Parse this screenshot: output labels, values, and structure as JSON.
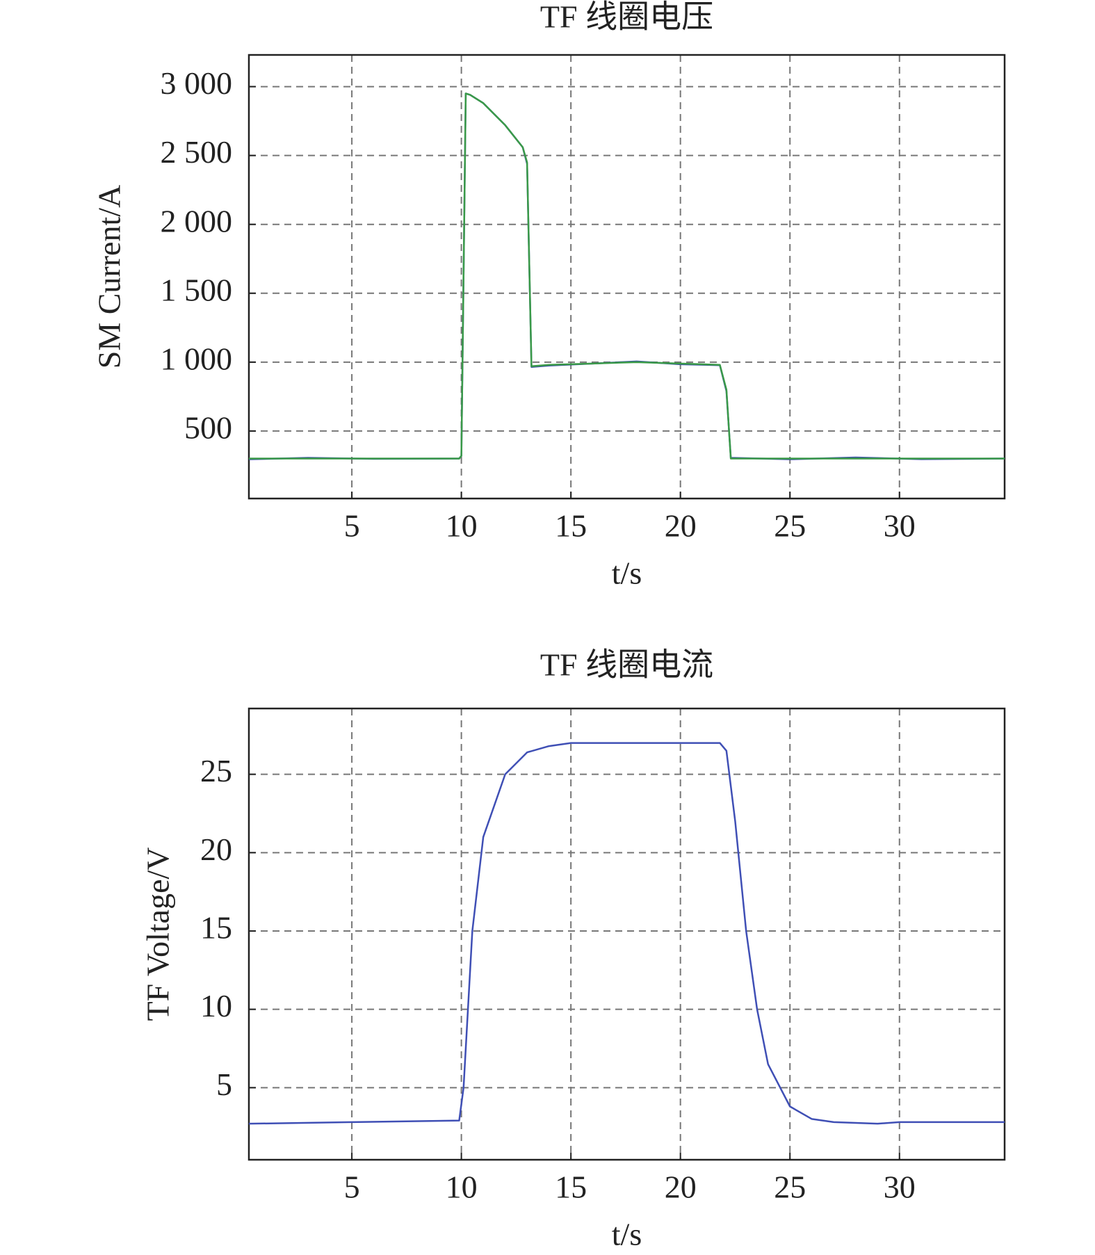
{
  "chart_data": [
    {
      "type": "line",
      "title": "TF 线圈电压",
      "xlabel": "t/s",
      "ylabel": "SM Current/A",
      "x": [
        0.3,
        3,
        6,
        9.9,
        10.0,
        10.2,
        10.4,
        11,
        12,
        12.8,
        13.0,
        13.2,
        14,
        16,
        18,
        20,
        21.8,
        22.1,
        22.3,
        25,
        28,
        31,
        34.8
      ],
      "series": [
        {
          "color": "#3b4fa8",
          "values": [
            295,
            305,
            298,
            300,
            320,
            2950,
            2940,
            2880,
            2720,
            2560,
            2440,
            965,
            975,
            990,
            1005,
            985,
            978,
            790,
            305,
            295,
            308,
            296,
            300
          ]
        },
        {
          "color": "#3a9a48",
          "values": [
            300,
            300,
            300,
            300,
            320,
            2950,
            2940,
            2880,
            2720,
            2560,
            2450,
            970,
            980,
            990,
            1000,
            990,
            980,
            800,
            300,
            300,
            300,
            300,
            300
          ]
        }
      ],
      "xlim": [
        0.3,
        34.8
      ],
      "xticks": [
        5,
        10,
        15,
        20,
        25,
        30
      ],
      "ylim": [
        10,
        3230
      ],
      "yticks": [
        500,
        {
          "value": 1000,
          "label": "1 000"
        },
        {
          "value": 1500,
          "label": "1 500"
        },
        {
          "value": 2000,
          "label": "2 000"
        },
        {
          "value": 2500,
          "label": "2 500"
        },
        {
          "value": 3000,
          "label": "3 000"
        }
      ],
      "grid": true
    },
    {
      "type": "line",
      "title": "TF 线圈电流",
      "xlabel": "t/s",
      "ylabel": "TF Voltage/V",
      "x": [
        0.3,
        5,
        9.9,
        10.1,
        10.5,
        11,
        12,
        13,
        14,
        15,
        21.8,
        22.1,
        22.5,
        23,
        23.5,
        24,
        25,
        26,
        27,
        29,
        30,
        34.8
      ],
      "series": [
        {
          "color": "#3f4fb5",
          "values": [
            2.7,
            2.8,
            2.9,
            5,
            15,
            21,
            25,
            26.4,
            26.8,
            27,
            27,
            26.5,
            22,
            15,
            10,
            6.5,
            3.8,
            3,
            2.8,
            2.7,
            2.8,
            2.8
          ]
        }
      ],
      "xlim": [
        0.3,
        34.8
      ],
      "xticks": [
        5,
        10,
        15,
        20,
        25,
        30
      ],
      "ylim": [
        0.4,
        29.2
      ],
      "yticks": [
        5,
        10,
        15,
        20,
        25
      ],
      "grid": true
    }
  ]
}
